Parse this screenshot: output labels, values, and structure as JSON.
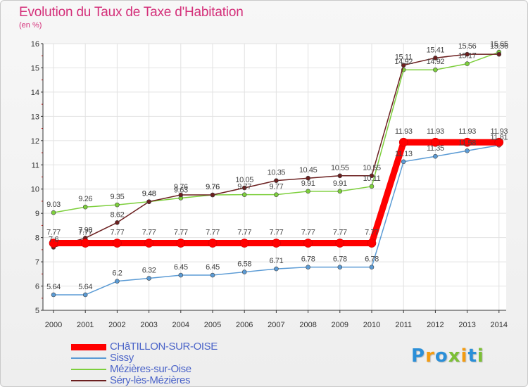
{
  "colors": {
    "title": "#d4307a",
    "axis": "#333333",
    "grid": "#e2e2e2",
    "legend_text": "#4a63c8",
    "series": [
      "#ff0000",
      "#5b9bd5",
      "#7dcf3c",
      "#6b1f1f"
    ],
    "marker_fill": [
      "#ff0000",
      "#5b9bd5",
      "#7dcf3c",
      "#6b1f1f"
    ],
    "logo": [
      "#2b8fd8",
      "#f39c12",
      "#7cbf35"
    ]
  },
  "logo": {
    "text": "Proxiti",
    "letters": [
      "P",
      "r",
      "o",
      "x",
      "i",
      "t",
      "i"
    ]
  },
  "chart_data": {
    "type": "line",
    "title": "Evolution du Taux de Taxe d'Habitation",
    "subtitle": "(en %)",
    "xlabel": "",
    "ylabel": "",
    "x": [
      "2000",
      "2001",
      "2002",
      "2003",
      "2004",
      "2005",
      "2006",
      "2007",
      "2008",
      "2009",
      "2010",
      "2011",
      "2012",
      "2013",
      "2014"
    ],
    "ylim": [
      5,
      16
    ],
    "yticks": [
      "5",
      "6",
      "7",
      "8",
      "9",
      "10",
      "11",
      "12",
      "13",
      "14",
      "15",
      "16"
    ],
    "grid": true,
    "legend_position": "bottom-left",
    "series": [
      {
        "name": "CHâTILLON-SUR-OISE",
        "values": [
          7.77,
          7.77,
          7.77,
          7.77,
          7.77,
          7.77,
          7.77,
          7.77,
          7.77,
          7.77,
          7.77,
          11.93,
          11.93,
          11.93,
          11.93
        ],
        "labels": [
          "7.77",
          "7.77",
          "7.77",
          "7.77",
          "7.77",
          "7.77",
          "7.77",
          "7.77",
          "7.77",
          "7.77",
          "7.77",
          "11.93",
          "11.93",
          "11.93",
          "11.93"
        ]
      },
      {
        "name": "Sissy",
        "values": [
          5.64,
          5.64,
          6.2,
          6.32,
          6.45,
          6.45,
          6.58,
          6.71,
          6.78,
          6.78,
          6.78,
          11.13,
          11.35,
          11.58,
          11.81
        ],
        "labels": [
          "5.64",
          "5.64",
          "6.2",
          "6.32",
          "6.45",
          "6.45",
          "6.58",
          "6.71",
          "6.78",
          "6.78",
          "6.78",
          "11.13",
          "11.35",
          "11.58",
          "11.81"
        ]
      },
      {
        "name": "Mézières-sur-Oise",
        "values": [
          9.03,
          9.26,
          9.35,
          9.48,
          9.63,
          9.76,
          9.77,
          9.77,
          9.91,
          9.91,
          10.11,
          14.92,
          14.92,
          15.17,
          15.65
        ],
        "labels": [
          "9.03",
          "9.26",
          "9.35",
          "9.48",
          "9.63",
          "9.76",
          "9.77",
          "9.77",
          "9.91",
          "9.91",
          "10.11",
          "14.92",
          "14.92",
          "15.17",
          "15.65"
        ]
      },
      {
        "name": "Séry-lès-Mézières",
        "values": [
          7.6,
          7.98,
          8.62,
          9.48,
          9.76,
          9.76,
          10.05,
          10.35,
          10.45,
          10.55,
          10.55,
          15.11,
          15.41,
          15.56,
          15.56
        ],
        "labels": [
          "7.6",
          "7.98",
          "8.62",
          "9.48",
          "9.76",
          "9.76",
          "10.05",
          "10.35",
          "10.45",
          "10.55",
          "10.55",
          "15.11",
          "15.41",
          "15.56",
          "15.56"
        ]
      }
    ]
  }
}
